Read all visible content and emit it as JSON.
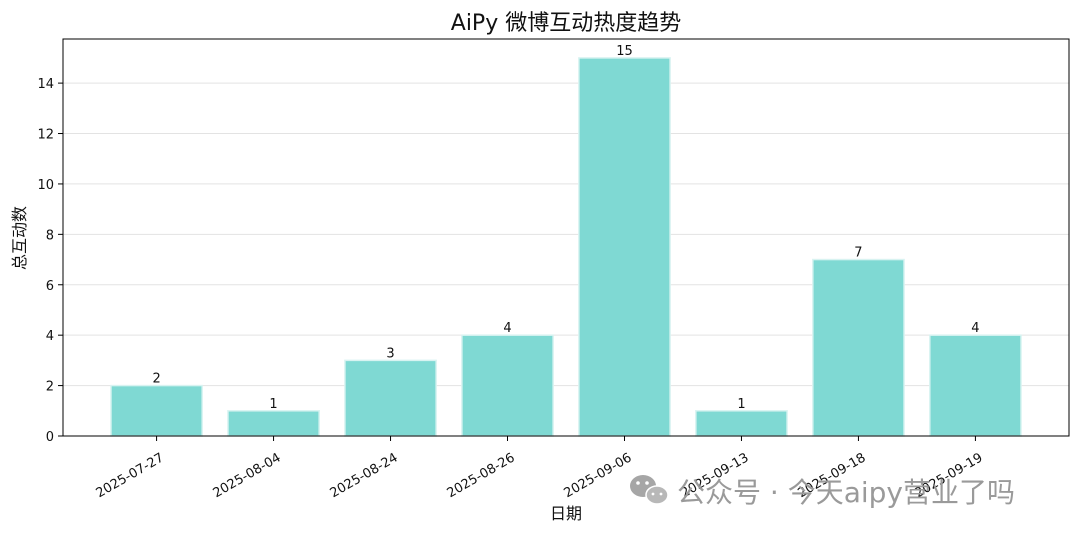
{
  "chart_data": {
    "type": "bar",
    "title": "AiPy 微博互动热度趋势",
    "xlabel": "日期",
    "ylabel": "总互动数",
    "categories": [
      "2025-07-27",
      "2025-08-04",
      "2025-08-24",
      "2025-08-26",
      "2025-09-06",
      "2025-09-13",
      "2025-09-18",
      "2025-09-19"
    ],
    "values": [
      2,
      1,
      3,
      4,
      15,
      1,
      7,
      4
    ],
    "ylim": [
      0,
      15.75
    ],
    "yticks": [
      0,
      2,
      4,
      6,
      8,
      10,
      12,
      14
    ],
    "grid": "horizontal",
    "bar_color": "#7fd9d3",
    "bar_edge_color": "#d8f3f1"
  },
  "watermark": {
    "text": "公众号 · 今天aipy营业了吗",
    "icon": "wechat-icon",
    "color": "#9a9a9a"
  }
}
